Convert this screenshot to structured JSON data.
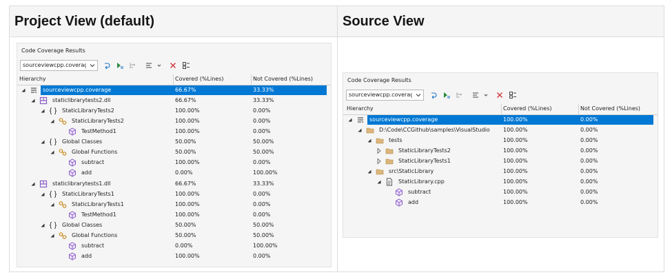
{
  "table": {
    "headers": [
      "Project View (default)",
      "Source View"
    ],
    "panels": [
      {
        "title": "Code Coverage Results",
        "dropdown": "sourceviewcpp.coverag",
        "columns": [
          "Hierarchy",
          "Covered (%Lines)",
          "Not Covered (%Lines)"
        ],
        "rows": [
          {
            "name": "sourceviewcpp.coverage",
            "covered": "66.67%",
            "not_covered": "33.33%"
          },
          {
            "name": "staticlibrarytests2.dll",
            "covered": "66.67%",
            "not_covered": "33.33%"
          },
          {
            "name": "StaticLibraryTests2",
            "covered": "100.00%",
            "not_covered": "0.00%"
          },
          {
            "name": "StaticLibraryTests2",
            "covered": "100.00%",
            "not_covered": "0.00%"
          },
          {
            "name": "TestMethod1",
            "covered": "100.00%",
            "not_covered": "0.00%"
          },
          {
            "name": "Global Classes",
            "covered": "50.00%",
            "not_covered": "50.00%"
          },
          {
            "name": "Global Functions",
            "covered": "50.00%",
            "not_covered": "50.00%"
          },
          {
            "name": "subtract",
            "covered": "100.00%",
            "not_covered": "0.00%"
          },
          {
            "name": "add",
            "covered": "0.00%",
            "not_covered": "100.00%"
          },
          {
            "name": "staticlibrarytests1.dll",
            "covered": "66.67%",
            "not_covered": "33.33%"
          },
          {
            "name": "StaticLibraryTests1",
            "covered": "100.00%",
            "not_covered": "0.00%"
          },
          {
            "name": "StaticLibraryTests1",
            "covered": "100.00%",
            "not_covered": "0.00%"
          },
          {
            "name": "TestMethod1",
            "covered": "100.00%",
            "not_covered": "0.00%"
          },
          {
            "name": "Global Classes",
            "covered": "50.00%",
            "not_covered": "50.00%"
          },
          {
            "name": "Global Functions",
            "covered": "50.00%",
            "not_covered": "50.00%"
          },
          {
            "name": "subtract",
            "covered": "0.00%",
            "not_covered": "100.00%"
          },
          {
            "name": "add",
            "covered": "100.00%",
            "not_covered": "0.00%"
          }
        ]
      },
      {
        "title": "Code Coverage Results",
        "dropdown": "sourceviewcpp.coverag",
        "columns": [
          "Hierarchy",
          "Covered (%Lines)",
          "Not Covered (%Lines)"
        ],
        "rows": [
          {
            "name": "sourceviewcpp.coverage",
            "covered": "100.00%",
            "not_covered": "0.00%"
          },
          {
            "name": "D:\\Code\\CCGithub\\samples\\VisualStudio",
            "covered": "100.00%",
            "not_covered": "0.00%"
          },
          {
            "name": "tests",
            "covered": "100.00%",
            "not_covered": "0.00%"
          },
          {
            "name": "StaticLibraryTests2",
            "covered": "100.00%",
            "not_covered": "0.00%"
          },
          {
            "name": "StaticLibraryTests1",
            "covered": "100.00%",
            "not_covered": "0.00%"
          },
          {
            "name": "src\\StaticLibrary",
            "covered": "100.00%",
            "not_covered": "0.00%"
          },
          {
            "name": "StaticLibrary.cpp",
            "covered": "100.00%",
            "not_covered": "0.00%"
          },
          {
            "name": "subtract",
            "covered": "100.00%",
            "not_covered": "0.00%"
          },
          {
            "name": "add",
            "covered": "100.00%",
            "not_covered": "0.00%"
          }
        ]
      }
    ]
  }
}
